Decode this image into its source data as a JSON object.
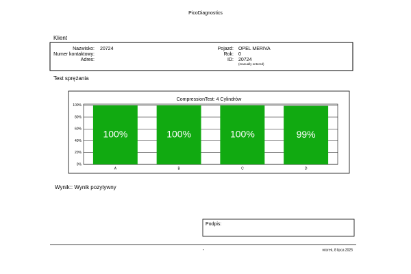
{
  "header": {
    "title": "PicoDiagnostics"
  },
  "client": {
    "title": "Klient",
    "left": [
      {
        "label": "Nazwisko:",
        "value": "20724"
      },
      {
        "label": "Numer kontaktowy:"
      },
      {
        "label": "Adres:"
      }
    ],
    "right": [
      {
        "label": "Pojazd:",
        "value": "OPEL MERIVA"
      },
      {
        "label": "Rok:",
        "value": "0"
      },
      {
        "label": "ID:",
        "value": "20724"
      }
    ],
    "note": "(manually entered)"
  },
  "section": {
    "title": "Test sprężania"
  },
  "chart_data": {
    "type": "bar",
    "title": "CompressionTest: 4 Cylindrów",
    "categories": [
      "A",
      "B",
      "C",
      "D"
    ],
    "values": [
      100,
      100,
      100,
      99
    ],
    "value_labels": [
      "100%",
      "100%",
      "100%",
      "99%"
    ],
    "color": "#11aa11",
    "ylim": [
      0,
      102
    ],
    "yticks": [
      {
        "value": 0,
        "label": "0%"
      },
      {
        "value": 20,
        "label": "20%"
      },
      {
        "value": 40,
        "label": "40%"
      },
      {
        "value": 60,
        "label": "60%"
      },
      {
        "value": 80,
        "label": "80%"
      },
      {
        "value": 100,
        "label": "100%"
      }
    ],
    "grid": true
  },
  "result": {
    "text": "Wynik:: Wynik pozytywny"
  },
  "signature": {
    "label": "Podpis:"
  },
  "footer": {
    "center": "-",
    "date": "wtorek, 8 lipca 2025"
  }
}
